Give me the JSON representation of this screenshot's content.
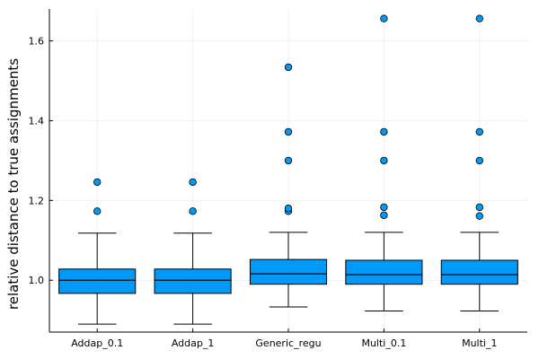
{
  "chart_data": {
    "type": "box",
    "title": "",
    "xlabel": "",
    "ylabel": "relative distance to true assignments",
    "ylim": [
      0.87,
      1.68
    ],
    "yticks": [
      1.0,
      1.2,
      1.4,
      1.6
    ],
    "ytick_labels": [
      "1.0",
      "1.2",
      "1.4",
      "1.6"
    ],
    "grid": true,
    "legend": "none",
    "box_color": "#009AFA",
    "categories": [
      "Addap_0.1",
      "Addap_1",
      "Generic_regu",
      "Multi_0.1",
      "Multi_1"
    ],
    "boxes": [
      {
        "whisker_low": 0.89,
        "q1": 0.967,
        "median": 1.0,
        "q3": 1.028,
        "whisker_high": 1.118,
        "outliers": [
          1.173,
          1.246
        ]
      },
      {
        "whisker_low": 0.89,
        "q1": 0.967,
        "median": 1.0,
        "q3": 1.028,
        "whisker_high": 1.118,
        "outliers": [
          1.173,
          1.246
        ]
      },
      {
        "whisker_low": 0.933,
        "q1": 0.99,
        "median": 1.016,
        "q3": 1.052,
        "whisker_high": 1.12,
        "outliers": [
          1.173,
          1.18,
          1.3,
          1.372,
          1.534
        ]
      },
      {
        "whisker_low": 0.923,
        "q1": 0.99,
        "median": 1.014,
        "q3": 1.05,
        "whisker_high": 1.12,
        "outliers": [
          1.163,
          1.183,
          1.3,
          1.372,
          1.656
        ]
      },
      {
        "whisker_low": 0.923,
        "q1": 0.99,
        "median": 1.014,
        "q3": 1.05,
        "whisker_high": 1.12,
        "outliers": [
          1.161,
          1.183,
          1.3,
          1.372,
          1.656
        ]
      }
    ]
  }
}
